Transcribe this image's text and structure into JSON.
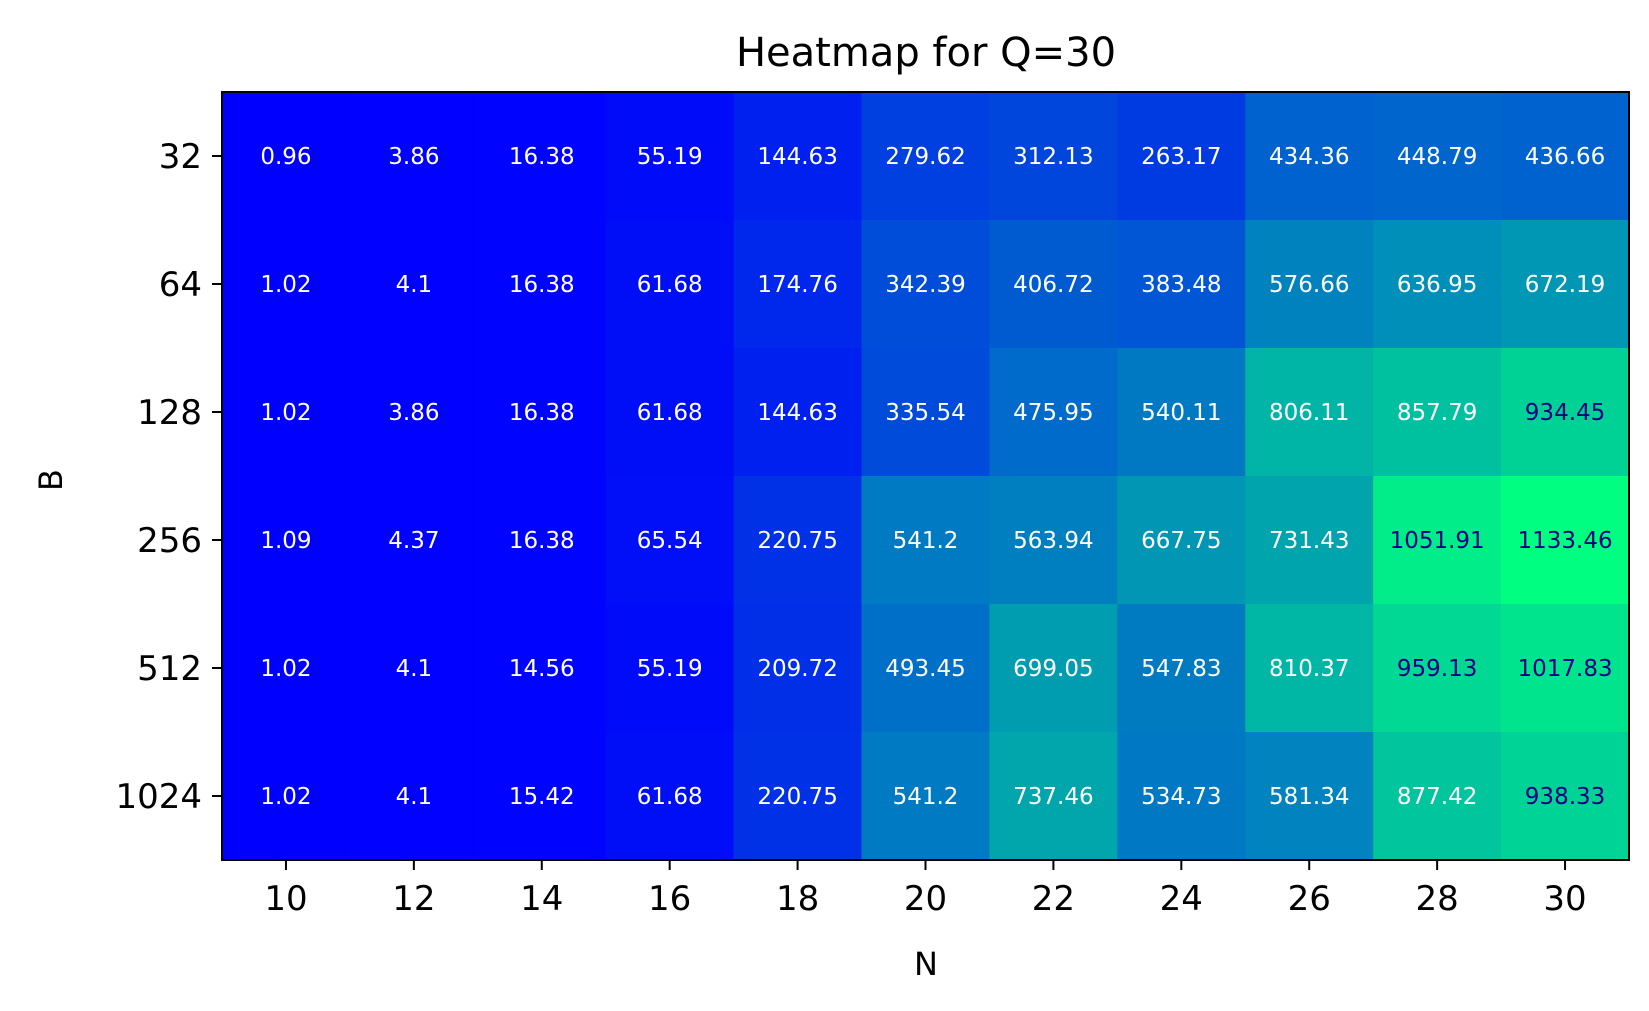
{
  "chart_data": {
    "type": "heatmap",
    "title": "Heatmap for Q=30",
    "xlabel": "N",
    "ylabel": "B",
    "x": [
      "10",
      "12",
      "14",
      "16",
      "18",
      "20",
      "22",
      "24",
      "26",
      "28",
      "30"
    ],
    "y": [
      "32",
      "64",
      "128",
      "256",
      "512",
      "1024"
    ],
    "values": [
      [
        0.96,
        3.86,
        16.38,
        55.19,
        144.63,
        279.62,
        312.13,
        263.17,
        434.36,
        448.79,
        436.66
      ],
      [
        1.02,
        4.1,
        16.38,
        61.68,
        174.76,
        342.39,
        406.72,
        383.48,
        576.66,
        636.95,
        672.19
      ],
      [
        1.02,
        3.86,
        16.38,
        61.68,
        144.63,
        335.54,
        475.95,
        540.11,
        806.11,
        857.79,
        934.45
      ],
      [
        1.09,
        4.37,
        16.38,
        65.54,
        220.75,
        541.2,
        563.94,
        667.75,
        731.43,
        1051.91,
        1133.46
      ],
      [
        1.02,
        4.1,
        14.56,
        55.19,
        209.72,
        493.45,
        699.05,
        547.83,
        810.37,
        959.13,
        1017.83
      ],
      [
        1.02,
        4.1,
        15.42,
        61.68,
        220.75,
        541.2,
        737.46,
        534.73,
        581.34,
        877.42,
        938.33
      ]
    ],
    "colormap": "winter",
    "color_low": "#0000ff",
    "color_high": "#00ff80",
    "text_color_light": "#ffffff",
    "text_color_dark": "#000080",
    "grid": false,
    "legend": "none"
  }
}
